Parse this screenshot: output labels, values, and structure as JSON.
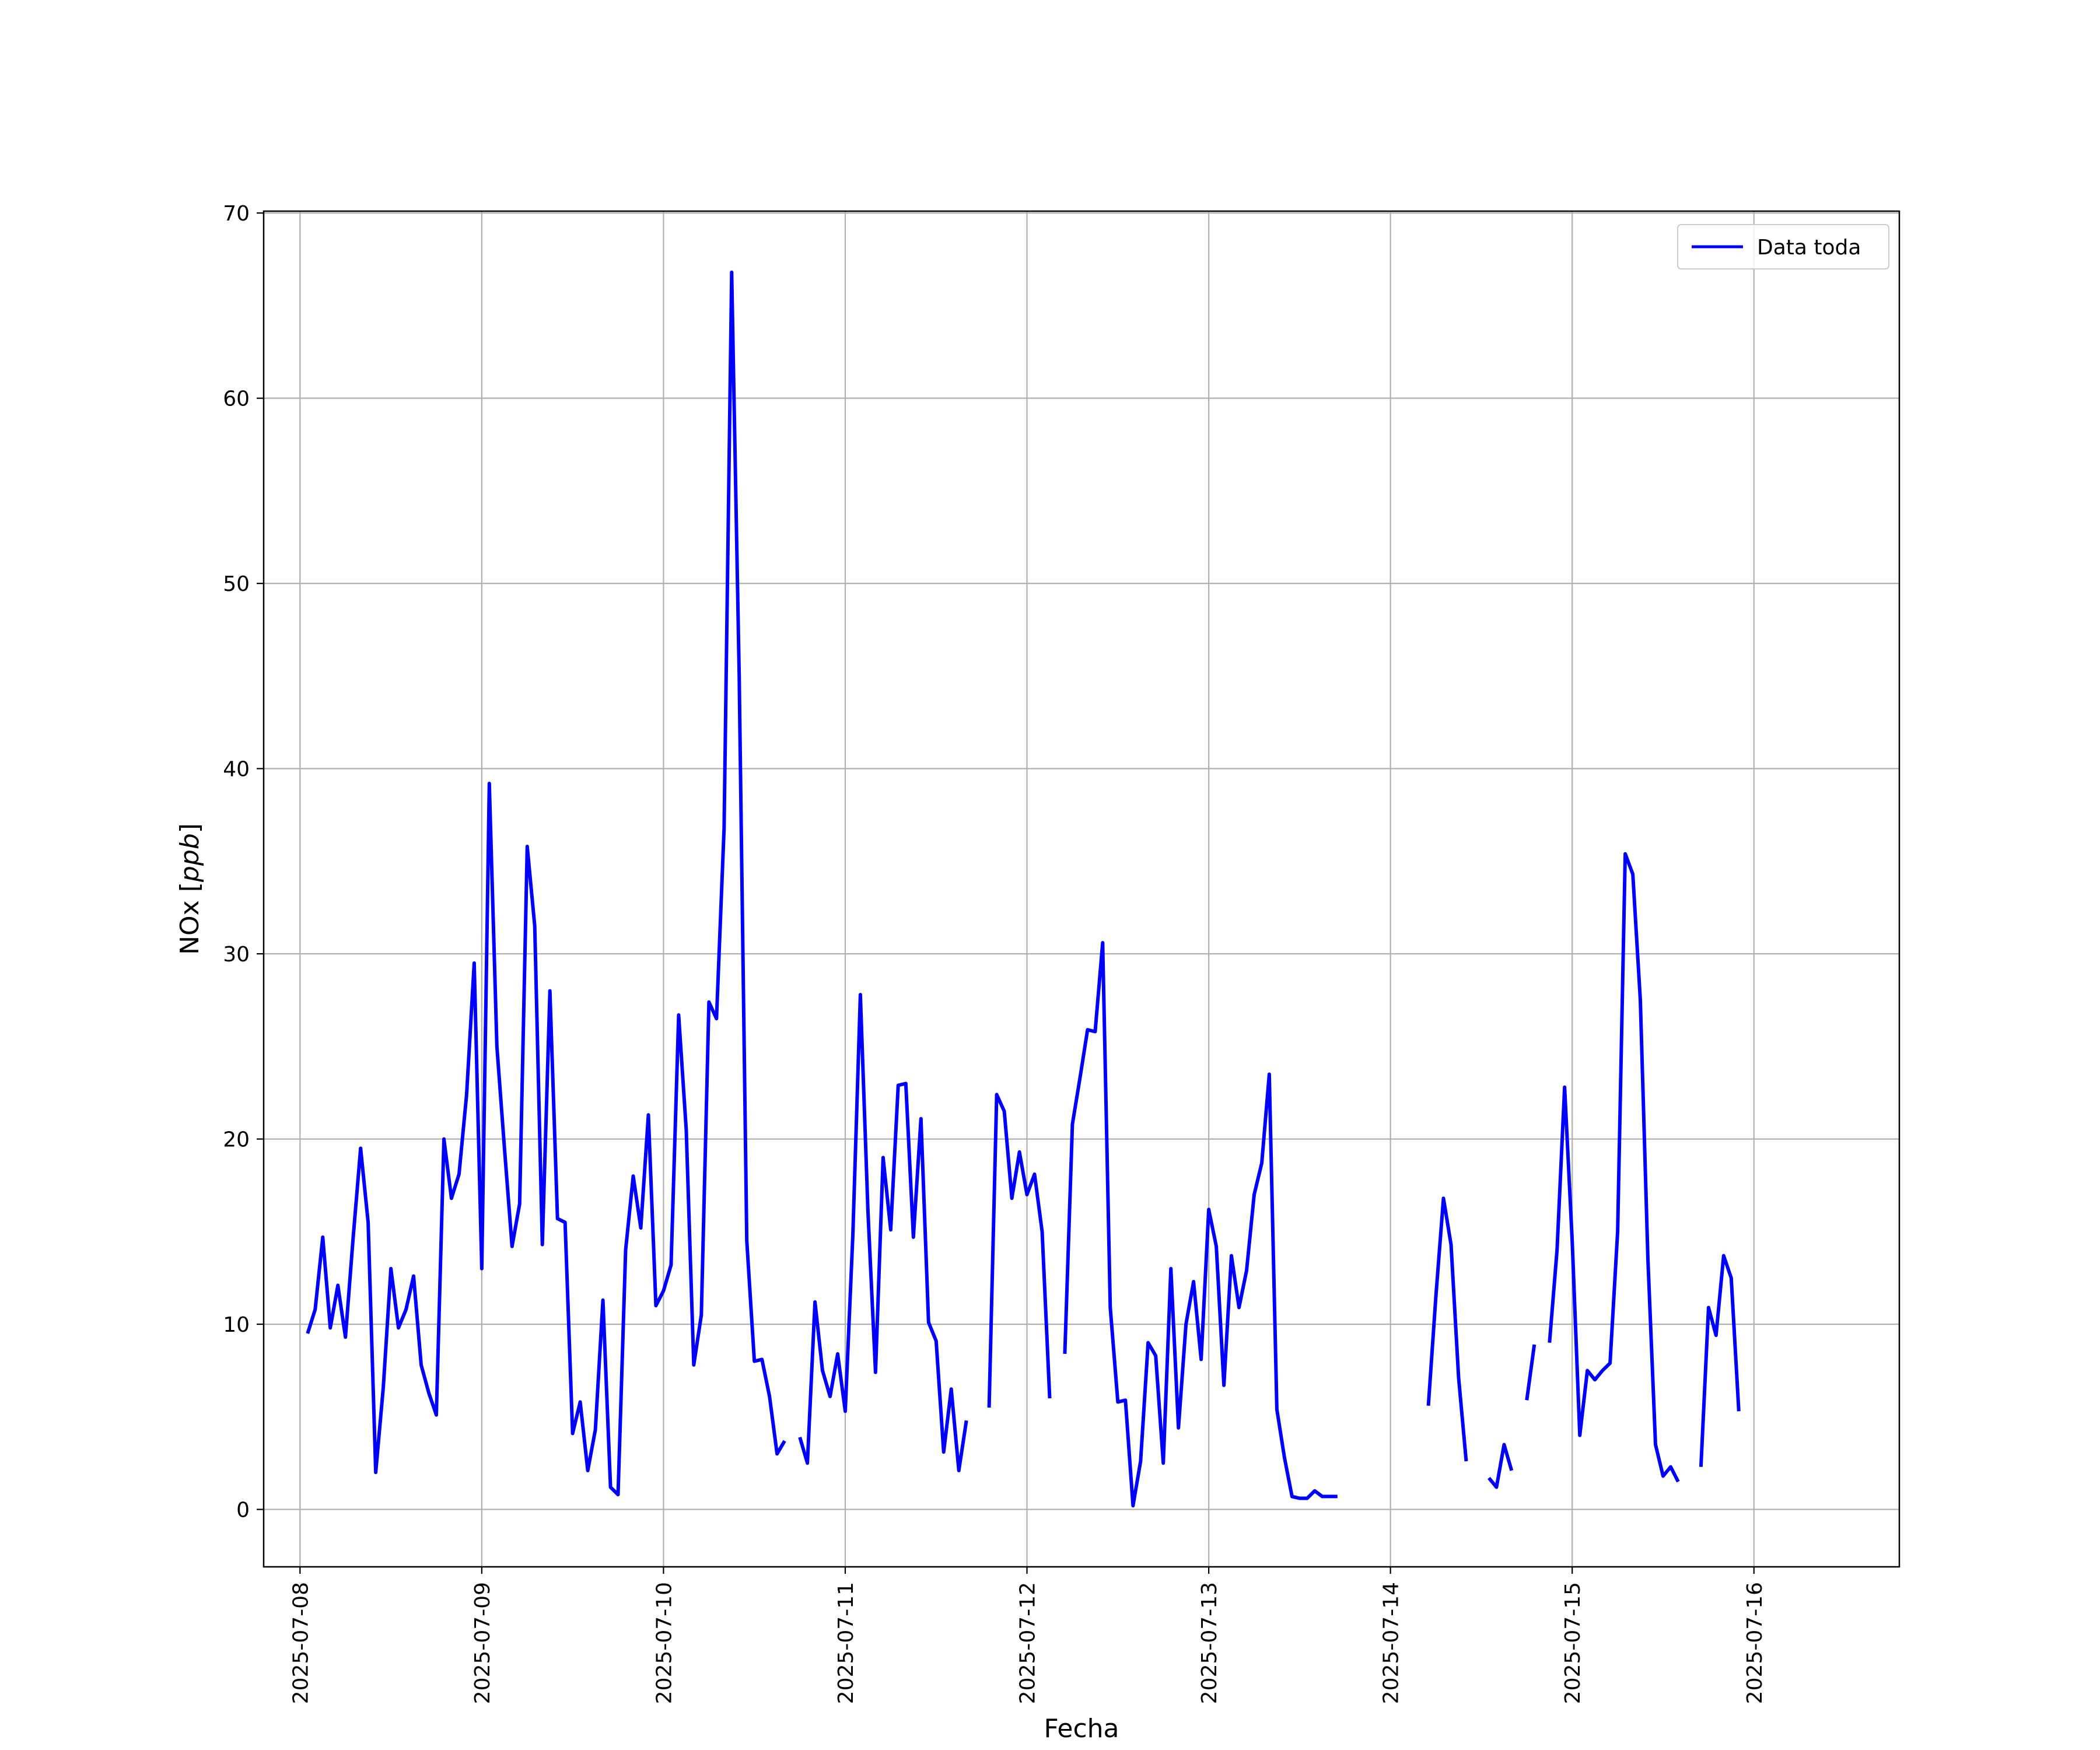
{
  "chart_data": {
    "type": "line",
    "xlabel": "Fecha",
    "ylabel": "NOx [ppb]",
    "ylabel_main": "NOx",
    "ylabel_unit": "ppb",
    "x_axis_type": "date",
    "xlim": [
      "2025-07-07T19:12",
      "2025-07-16T19:12"
    ],
    "ylim": [
      -3.1,
      70.1
    ],
    "x_ticks": [
      "2025-07-08",
      "2025-07-09",
      "2025-07-10",
      "2025-07-11",
      "2025-07-12",
      "2025-07-13",
      "2025-07-14",
      "2025-07-15",
      "2025-07-16"
    ],
    "y_ticks": [
      0,
      10,
      20,
      30,
      40,
      50,
      60,
      70
    ],
    "grid": true,
    "legend_position": "top-right",
    "series": [
      {
        "name": "Data toda",
        "color": "#0000ff",
        "segments": [
          [
            [
              "2025-07-08T01:00",
              9.5
            ],
            [
              "2025-07-08T02:00",
              10.8
            ],
            [
              "2025-07-08T03:00",
              14.7
            ],
            [
              "2025-07-08T04:00",
              9.8
            ],
            [
              "2025-07-08T05:00",
              12.1
            ],
            [
              "2025-07-08T06:00",
              9.3
            ],
            [
              "2025-07-08T07:00",
              14.6
            ],
            [
              "2025-07-08T08:00",
              19.5
            ],
            [
              "2025-07-08T09:00",
              15.5
            ],
            [
              "2025-07-08T10:00",
              2.0
            ],
            [
              "2025-07-08T11:00",
              6.6
            ],
            [
              "2025-07-08T12:00",
              13.0
            ],
            [
              "2025-07-08T13:00",
              9.8
            ],
            [
              "2025-07-08T14:00",
              10.8
            ],
            [
              "2025-07-08T15:00",
              12.6
            ],
            [
              "2025-07-08T16:00",
              7.8
            ],
            [
              "2025-07-08T17:00",
              6.3
            ],
            [
              "2025-07-08T18:00",
              5.1
            ],
            [
              "2025-07-08T19:00",
              20.0
            ],
            [
              "2025-07-08T20:00",
              16.8
            ],
            [
              "2025-07-08T21:00",
              18.1
            ],
            [
              "2025-07-08T22:00",
              22.4
            ],
            [
              "2025-07-08T23:00",
              29.5
            ],
            [
              "2025-07-09T00:00",
              13.0
            ],
            [
              "2025-07-09T01:00",
              39.2
            ],
            [
              "2025-07-09T02:00",
              25.0
            ],
            [
              "2025-07-09T03:00",
              19.5
            ],
            [
              "2025-07-09T04:00",
              14.2
            ],
            [
              "2025-07-09T05:00",
              16.5
            ],
            [
              "2025-07-09T06:00",
              35.8
            ],
            [
              "2025-07-09T07:00",
              31.5
            ],
            [
              "2025-07-09T08:00",
              14.3
            ],
            [
              "2025-07-09T09:00",
              28.0
            ],
            [
              "2025-07-09T10:00",
              15.7
            ],
            [
              "2025-07-09T11:00",
              15.5
            ],
            [
              "2025-07-09T12:00",
              4.1
            ],
            [
              "2025-07-09T13:00",
              5.8
            ],
            [
              "2025-07-09T14:00",
              2.1
            ],
            [
              "2025-07-09T15:00",
              4.3
            ],
            [
              "2025-07-09T16:00",
              11.3
            ],
            [
              "2025-07-09T17:00",
              1.2
            ],
            [
              "2025-07-09T18:00",
              0.8
            ],
            [
              "2025-07-09T19:00",
              14.0
            ],
            [
              "2025-07-09T20:00",
              18.0
            ],
            [
              "2025-07-09T21:00",
              15.2
            ],
            [
              "2025-07-09T22:00",
              21.3
            ],
            [
              "2025-07-09T23:00",
              11.0
            ],
            [
              "2025-07-10T00:00",
              11.8
            ],
            [
              "2025-07-10T01:00",
              13.2
            ],
            [
              "2025-07-10T02:00",
              26.7
            ],
            [
              "2025-07-10T03:00",
              20.5
            ],
            [
              "2025-07-10T04:00",
              7.8
            ],
            [
              "2025-07-10T05:00",
              10.5
            ],
            [
              "2025-07-10T06:00",
              27.4
            ],
            [
              "2025-07-10T07:00",
              26.5
            ],
            [
              "2025-07-10T08:00",
              36.8
            ],
            [
              "2025-07-10T09:00",
              66.8
            ],
            [
              "2025-07-10T10:00",
              45.0
            ],
            [
              "2025-07-10T11:00",
              14.5
            ],
            [
              "2025-07-10T12:00",
              8.0
            ],
            [
              "2025-07-10T13:00",
              8.1
            ],
            [
              "2025-07-10T14:00",
              6.1
            ],
            [
              "2025-07-10T15:00",
              3.0
            ],
            [
              "2025-07-10T16:00",
              3.7
            ]
          ],
          [
            [
              "2025-07-10T18:00",
              3.9
            ],
            [
              "2025-07-10T19:00",
              2.5
            ],
            [
              "2025-07-10T20:00",
              11.2
            ],
            [
              "2025-07-10T21:00",
              7.5
            ],
            [
              "2025-07-10T22:00",
              6.1
            ],
            [
              "2025-07-10T23:00",
              8.4
            ],
            [
              "2025-07-11T00:00",
              5.3
            ],
            [
              "2025-07-11T01:00",
              14.8
            ],
            [
              "2025-07-11T02:00",
              27.8
            ],
            [
              "2025-07-11T03:00",
              16.1
            ],
            [
              "2025-07-11T04:00",
              7.4
            ],
            [
              "2025-07-11T05:00",
              19.0
            ],
            [
              "2025-07-11T06:00",
              15.1
            ],
            [
              "2025-07-11T07:00",
              22.9
            ],
            [
              "2025-07-11T08:00",
              23.0
            ],
            [
              "2025-07-11T09:00",
              14.7
            ],
            [
              "2025-07-11T10:00",
              21.1
            ],
            [
              "2025-07-11T11:00",
              10.1
            ],
            [
              "2025-07-11T12:00",
              9.1
            ],
            [
              "2025-07-11T13:00",
              3.1
            ],
            [
              "2025-07-11T14:00",
              6.5
            ],
            [
              "2025-07-11T15:00",
              2.1
            ],
            [
              "2025-07-11T16:00",
              4.8
            ]
          ],
          [
            [
              "2025-07-11T19:00",
              5.5
            ],
            [
              "2025-07-11T20:00",
              22.4
            ],
            [
              "2025-07-11T21:00",
              21.5
            ],
            [
              "2025-07-11T22:00",
              16.8
            ],
            [
              "2025-07-11T23:00",
              19.3
            ],
            [
              "2025-07-12T00:00",
              17.0
            ],
            [
              "2025-07-12T01:00",
              18.1
            ],
            [
              "2025-07-12T02:00",
              15.0
            ],
            [
              "2025-07-12T03:00",
              6.0
            ]
          ],
          [
            [
              "2025-07-12T05:00",
              8.4
            ],
            [
              "2025-07-12T06:00",
              20.8
            ],
            [
              "2025-07-12T07:00",
              23.3
            ],
            [
              "2025-07-12T08:00",
              25.9
            ],
            [
              "2025-07-12T09:00",
              25.8
            ],
            [
              "2025-07-12T10:00",
              30.6
            ],
            [
              "2025-07-12T11:00",
              10.9
            ],
            [
              "2025-07-12T12:00",
              5.8
            ],
            [
              "2025-07-12T13:00",
              5.9
            ],
            [
              "2025-07-12T14:00",
              0.2
            ],
            [
              "2025-07-12T15:00",
              2.6
            ],
            [
              "2025-07-12T16:00",
              9.0
            ],
            [
              "2025-07-12T17:00",
              8.3
            ],
            [
              "2025-07-12T18:00",
              2.5
            ],
            [
              "2025-07-12T19:00",
              13.0
            ],
            [
              "2025-07-12T20:00",
              4.4
            ],
            [
              "2025-07-12T21:00",
              10.0
            ],
            [
              "2025-07-12T22:00",
              12.3
            ],
            [
              "2025-07-12T23:00",
              8.1
            ],
            [
              "2025-07-13T00:00",
              16.2
            ],
            [
              "2025-07-13T01:00",
              14.2
            ],
            [
              "2025-07-13T02:00",
              6.7
            ],
            [
              "2025-07-13T03:00",
              13.7
            ],
            [
              "2025-07-13T04:00",
              10.9
            ],
            [
              "2025-07-13T05:00",
              12.9
            ],
            [
              "2025-07-13T06:00",
              17.0
            ],
            [
              "2025-07-13T07:00",
              18.7
            ],
            [
              "2025-07-13T08:00",
              23.5
            ],
            [
              "2025-07-13T09:00",
              5.4
            ],
            [
              "2025-07-13T10:00",
              2.8
            ],
            [
              "2025-07-13T11:00",
              0.7
            ],
            [
              "2025-07-13T12:00",
              0.6
            ],
            [
              "2025-07-13T13:00",
              0.6
            ],
            [
              "2025-07-13T14:00",
              1.0
            ],
            [
              "2025-07-13T15:00",
              0.7
            ],
            [
              "2025-07-13T16:00",
              0.7
            ],
            [
              "2025-07-13T17:00",
              0.7
            ]
          ],
          [
            [
              "2025-07-14T05:00",
              5.6
            ],
            [
              "2025-07-14T06:00",
              11.5
            ],
            [
              "2025-07-14T07:00",
              16.8
            ],
            [
              "2025-07-14T08:00",
              14.3
            ],
            [
              "2025-07-14T09:00",
              7.1
            ],
            [
              "2025-07-14T10:00",
              2.6
            ]
          ],
          [
            [
              "2025-07-14T13:00",
              1.7
            ],
            [
              "2025-07-14T14:00",
              1.2
            ],
            [
              "2025-07-14T15:00",
              3.5
            ],
            [
              "2025-07-14T16:00",
              2.1
            ]
          ],
          [
            [
              "2025-07-14T18:00",
              5.9
            ],
            [
              "2025-07-14T19:00",
              8.9
            ]
          ],
          [
            [
              "2025-07-14T21:00",
              9.0
            ],
            [
              "2025-07-14T22:00",
              14.0
            ],
            [
              "2025-07-14T23:00",
              22.8
            ],
            [
              "2025-07-15T00:00",
              14.5
            ],
            [
              "2025-07-15T01:00",
              4.0
            ],
            [
              "2025-07-15T02:00",
              7.5
            ],
            [
              "2025-07-15T03:00",
              7.0
            ],
            [
              "2025-07-15T04:00",
              7.5
            ],
            [
              "2025-07-15T05:00",
              7.9
            ],
            [
              "2025-07-15T06:00",
              15.0
            ],
            [
              "2025-07-15T07:00",
              35.4
            ],
            [
              "2025-07-15T08:00",
              34.3
            ],
            [
              "2025-07-15T09:00",
              27.5
            ],
            [
              "2025-07-15T10:00",
              13.5
            ],
            [
              "2025-07-15T11:00",
              3.5
            ],
            [
              "2025-07-15T12:00",
              1.8
            ],
            [
              "2025-07-15T13:00",
              2.3
            ],
            [
              "2025-07-15T14:00",
              1.5
            ]
          ],
          [
            [
              "2025-07-15T17:00",
              2.3
            ],
            [
              "2025-07-15T18:00",
              10.9
            ],
            [
              "2025-07-15T19:00",
              9.4
            ],
            [
              "2025-07-15T20:00",
              13.7
            ],
            [
              "2025-07-15T21:00",
              12.5
            ],
            [
              "2025-07-15T22:00",
              5.3
            ]
          ]
        ]
      }
    ]
  }
}
